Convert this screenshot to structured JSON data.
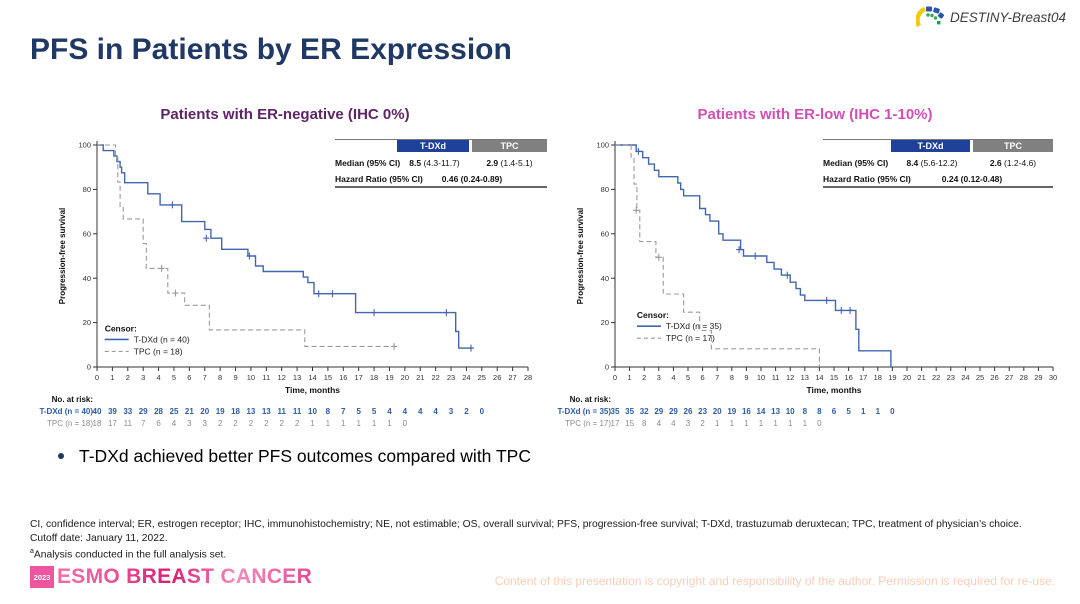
{
  "slide": {
    "title": "PFS in Patients by ER Expression",
    "logo_text": "DESTINY-Breast04",
    "bullet_text": "T-DXd achieved better PFS outcomes compared with TPC",
    "footnotes": {
      "line1": "CI, confidence interval; ER, estrogen receptor; IHC, immunohistochemistry; NE, not estimable; OS, overall survival; PFS, progression-free survival; T-DXd, trastuzumab deruxtecan; TPC, treatment of physician’s choice.",
      "line2": "Cutoff date: January 11, 2022.",
      "line3_sup": "a",
      "line3": "Analysis conducted in the full analysis set."
    },
    "footer": {
      "year": "2023",
      "brand": "ESMO BREAST CANCER",
      "copyright": "Content of this presentation is copyright and responsibility of the author. Permission is required for re-use."
    },
    "colors": {
      "title_navy": "#1F3864",
      "er_negative_title": "#5E2566",
      "er_low_title": "#D14FB4",
      "tdxd_blue": "#4166AE",
      "tdxd_header_bg": "#20419A",
      "tpc_gray": "#9A9A9A",
      "tpc_header_bg": "#808080",
      "esmo_pink": "#E9579B",
      "copyright_salmon": "#F9CDB8"
    }
  },
  "chart_data": [
    {
      "type": "line",
      "subtype": "kaplan-meier-step",
      "title": "Patients with ER-negative (IHC 0%)",
      "xlabel": "Time, months",
      "ylabel": "Progression-free survival",
      "xlim": [
        0,
        28
      ],
      "ylim": [
        0,
        100
      ],
      "xtick_step": 1,
      "ytick_step": 20,
      "grid": false,
      "legend_title": "Censor:",
      "legend_position": "inside-bottom-left",
      "legend_pos": [
        0.5,
        16
      ],
      "series": [
        {
          "name": "T-DXd (n = 40)",
          "color": "#4166AE",
          "dash": "solid",
          "steps": [
            [
              0,
              100
            ],
            [
              0.4,
              97.5
            ],
            [
              1.1,
              95
            ],
            [
              1.3,
              92.5
            ],
            [
              1.5,
              90
            ],
            [
              1.6,
              87.5
            ],
            [
              1.8,
              83
            ],
            [
              3.3,
              78
            ],
            [
              4.1,
              73
            ],
            [
              5.5,
              65.5
            ],
            [
              7.0,
              62
            ],
            [
              7.4,
              58
            ],
            [
              8.1,
              53
            ],
            [
              9.8,
              50
            ],
            [
              10.3,
              45.5
            ],
            [
              10.8,
              43
            ],
            [
              13.4,
              40.5
            ],
            [
              13.7,
              38
            ],
            [
              14.1,
              33
            ],
            [
              16.8,
              24.5
            ],
            [
              23.3,
              16
            ],
            [
              23.5,
              8.5
            ],
            [
              24.4,
              8.5
            ]
          ],
          "censors": [
            [
              4.9,
              73
            ],
            [
              7.1,
              58
            ],
            [
              9.9,
              50
            ],
            [
              14.4,
              33
            ],
            [
              15.3,
              33
            ],
            [
              18.0,
              24.5
            ],
            [
              22.7,
              24.5
            ],
            [
              24.3,
              8.5
            ]
          ]
        },
        {
          "name": "TPC (n = 18)",
          "color": "#9A9A9A",
          "dash": "dashed",
          "steps": [
            [
              0,
              100
            ],
            [
              1.2,
              94.4
            ],
            [
              1.35,
              83.3
            ],
            [
              1.5,
              72.2
            ],
            [
              1.7,
              66.7
            ],
            [
              3.0,
              55.6
            ],
            [
              3.2,
              44.4
            ],
            [
              4.6,
              33.3
            ],
            [
              5.7,
              27.8
            ],
            [
              7.3,
              16.7
            ],
            [
              13.5,
              9.3
            ],
            [
              19.4,
              9.3
            ]
          ],
          "censors": [
            [
              4.2,
              44.4
            ],
            [
              5.1,
              33.3
            ],
            [
              19.3,
              9.3
            ]
          ]
        }
      ],
      "stats": {
        "header_tdxd": "T-DXd",
        "header_tpc": "TPC",
        "median_label": "Median (95% CI)",
        "median_tdxd": "8.5",
        "median_tdxd_ci": " (4.3-11.7)",
        "median_tpc": "2.9",
        "median_tpc_ci": " (1.4-5.1)",
        "hr_label": "Hazard Ratio (95% CI)",
        "hr_value": "0.46 (0.24-0.89)"
      },
      "at_risk": {
        "label": "No. at risk:",
        "rows": [
          {
            "name": "T-DXd (n = 40)",
            "color": "#2D5BA8",
            "bold": true,
            "values": [
              40,
              39,
              33,
              29,
              28,
              25,
              21,
              20,
              19,
              18,
              13,
              13,
              11,
              11,
              10,
              8,
              7,
              5,
              5,
              4,
              4,
              4,
              4,
              3,
              2,
              0
            ]
          },
          {
            "name": "TPC (n = 18)",
            "color": "#8C8C8C",
            "bold": false,
            "values": [
              18,
              17,
              11,
              7,
              6,
              4,
              3,
              3,
              2,
              2,
              2,
              2,
              2,
              2,
              1,
              1,
              1,
              1,
              1,
              1,
              0
            ]
          }
        ]
      }
    },
    {
      "type": "line",
      "subtype": "kaplan-meier-step",
      "title": "Patients with ER-low (IHC 1-10%)",
      "xlabel": "Time, months",
      "ylabel": "Progression-free survival",
      "xlim": [
        0,
        30
      ],
      "ylim": [
        0,
        100
      ],
      "xtick_step": 1,
      "ytick_step": 20,
      "grid": false,
      "legend_title": "Censor:",
      "legend_position": "inside-bottom-left",
      "legend_pos": [
        1.5,
        22
      ],
      "series": [
        {
          "name": "T-DXd (n = 35)",
          "color": "#4166AE",
          "dash": "solid",
          "steps": [
            [
              0,
              100
            ],
            [
              1.45,
              97.1
            ],
            [
              1.9,
              94.3
            ],
            [
              2.3,
              91.4
            ],
            [
              2.7,
              88.6
            ],
            [
              3.0,
              85.7
            ],
            [
              4.3,
              82.9
            ],
            [
              4.5,
              80
            ],
            [
              4.7,
              77.1
            ],
            [
              5.8,
              71.4
            ],
            [
              6.2,
              68.6
            ],
            [
              6.5,
              65.7
            ],
            [
              7.1,
              60
            ],
            [
              7.4,
              57.1
            ],
            [
              8.6,
              52.9
            ],
            [
              8.8,
              50
            ],
            [
              10.4,
              47.1
            ],
            [
              10.9,
              44.1
            ],
            [
              11.4,
              41.4
            ],
            [
              12.0,
              38.2
            ],
            [
              12.4,
              35.3
            ],
            [
              12.7,
              32.4
            ],
            [
              13.0,
              30
            ],
            [
              15.1,
              25.5
            ],
            [
              16.5,
              17
            ],
            [
              16.7,
              7.3
            ],
            [
              18.8,
              7.3
            ],
            [
              18.9,
              0
            ]
          ],
          "censors": [
            [
              1.6,
              97.1
            ],
            [
              8.5,
              52.9
            ],
            [
              9.6,
              50
            ],
            [
              11.8,
              41.4
            ],
            [
              14.5,
              30
            ],
            [
              15.5,
              25.5
            ],
            [
              16.1,
              25.5
            ]
          ]
        },
        {
          "name": "TPC (n = 17)",
          "color": "#9A9A9A",
          "dash": "dashed",
          "steps": [
            [
              0,
              100
            ],
            [
              1.1,
              94.1
            ],
            [
              1.3,
              82.4
            ],
            [
              1.5,
              70.6
            ],
            [
              1.7,
              56.5
            ],
            [
              2.8,
              49.4
            ],
            [
              3.3,
              32.9
            ],
            [
              4.7,
              24.7
            ],
            [
              5.8,
              16.5
            ],
            [
              6.6,
              8.2
            ],
            [
              13.9,
              8.2
            ],
            [
              14.0,
              0
            ]
          ],
          "censors": [
            [
              1.45,
              70.6
            ],
            [
              3.0,
              49.4
            ]
          ]
        }
      ],
      "stats": {
        "header_tdxd": "T-DXd",
        "header_tpc": "TPC",
        "median_label": "Median (95% CI)",
        "median_tdxd": "8.4",
        "median_tdxd_ci": " (5.6-12.2)",
        "median_tpc": "2.6",
        "median_tpc_ci": " (1.2-4.6)",
        "hr_label": "Hazard Ratio (95% CI)",
        "hr_value": "0.24 (0.12-0.48)"
      },
      "at_risk": {
        "label": "No. at risk:",
        "rows": [
          {
            "name": "T-DXd (n = 35)",
            "color": "#2D5BA8",
            "bold": true,
            "values": [
              35,
              35,
              32,
              29,
              29,
              26,
              23,
              20,
              19,
              16,
              14,
              13,
              10,
              8,
              8,
              6,
              5,
              1,
              1,
              0
            ]
          },
          {
            "name": "TPC (n = 17)",
            "color": "#8C8C8C",
            "bold": false,
            "values": [
              17,
              15,
              8,
              4,
              4,
              3,
              2,
              1,
              1,
              1,
              1,
              1,
              1,
              1,
              0
            ]
          }
        ]
      }
    }
  ]
}
